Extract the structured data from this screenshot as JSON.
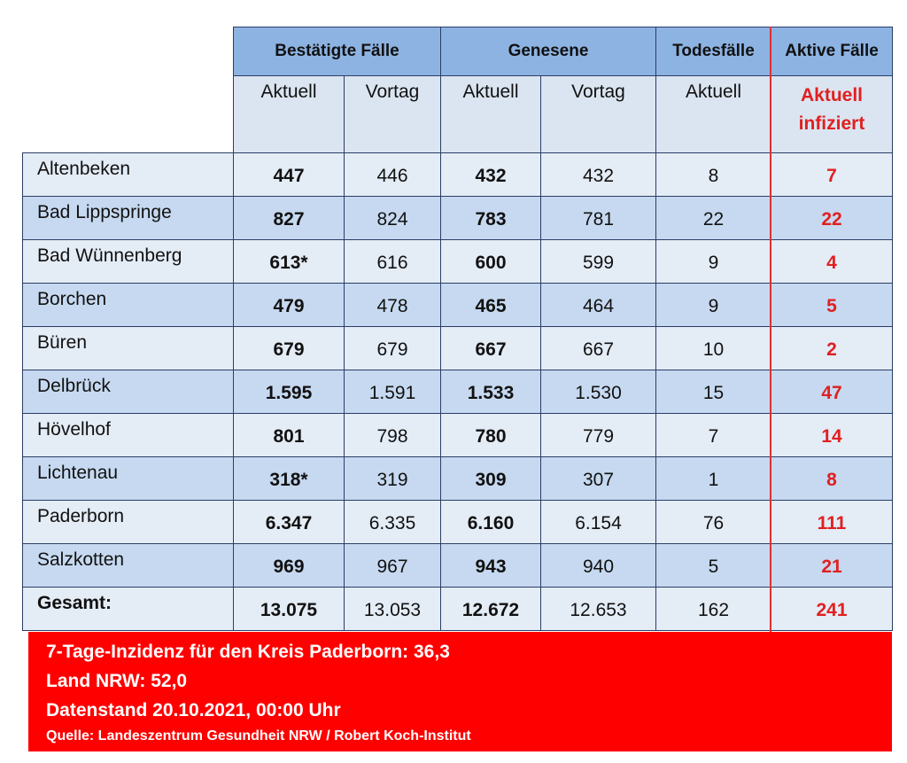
{
  "header": {
    "groups": [
      "Bestätigte Fälle",
      "Genesene",
      "Todesfälle",
      "Aktive Fälle"
    ],
    "subheaders": [
      "Aktuell",
      "Vortag",
      "Aktuell",
      "Vortag",
      "Aktuell",
      "Aktuell infiziert"
    ]
  },
  "table": {
    "rows": [
      [
        "Altenbeken",
        "447",
        "446",
        "432",
        "432",
        "8",
        "7"
      ],
      [
        "Bad Lippspringe",
        "827",
        "824",
        "783",
        "781",
        "22",
        "22"
      ],
      [
        "Bad Wünnenberg",
        "613*",
        "616",
        "600",
        "599",
        "9",
        "4"
      ],
      [
        "Borchen",
        "479",
        "478",
        "465",
        "464",
        "9",
        "5"
      ],
      [
        "Büren",
        "679",
        "679",
        "667",
        "667",
        "10",
        "2"
      ],
      [
        "Delbrück",
        "1.595",
        "1.591",
        "1.533",
        "1.530",
        "15",
        "47"
      ],
      [
        "Hövelhof",
        "801",
        "798",
        "780",
        "779",
        "7",
        "14"
      ],
      [
        "Lichtenau",
        "318*",
        "319",
        "309",
        "307",
        "1",
        "8"
      ],
      [
        "Paderborn",
        "6.347",
        "6.335",
        "6.160",
        "6.154",
        "76",
        "111"
      ],
      [
        "Salzkotten",
        "969",
        "967",
        "943",
        "940",
        "5",
        "21"
      ],
      [
        "Gesamt:",
        "13.075",
        "13.053",
        "12.672",
        "12.653",
        "162",
        "241"
      ]
    ]
  },
  "footer": {
    "lines": [
      "7-Tage-Inzidenz für den Kreis Paderborn: 36,3",
      "Land NRW: 52,0",
      "Datenstand 20.10.2021, 00:00 Uhr",
      "Quelle: Landeszentrum Gesundheit NRW / Robert Koch-Institut"
    ]
  }
}
